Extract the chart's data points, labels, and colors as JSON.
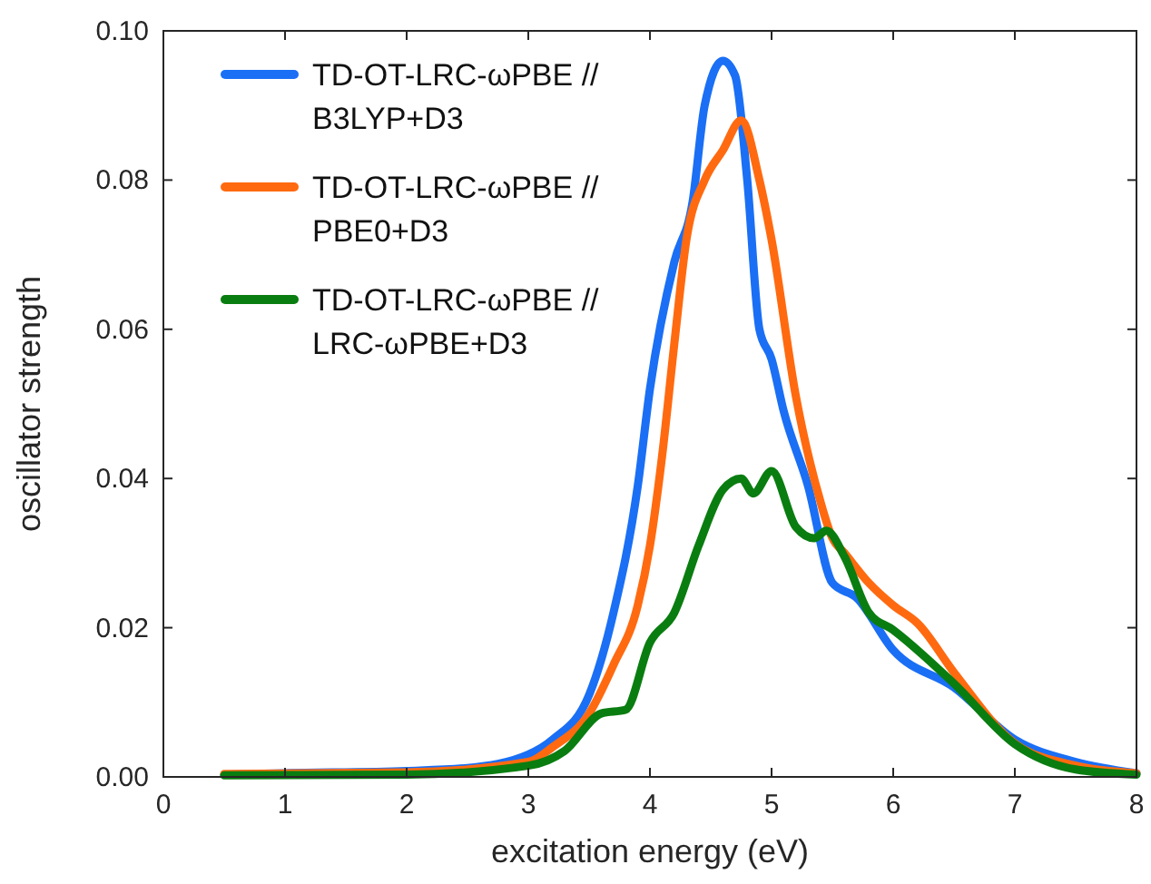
{
  "chart_data": {
    "type": "line",
    "xlabel": "excitation energy (eV)",
    "ylabel": "oscillator strength",
    "xlim": [
      0,
      8
    ],
    "ylim": [
      0,
      0.1
    ],
    "xticks": [
      0,
      1,
      2,
      3,
      4,
      5,
      6,
      7,
      8
    ],
    "yticks": [
      {
        "value": 0,
        "label": "0.00"
      },
      {
        "value": 0.02,
        "label": "0.02"
      },
      {
        "value": 0.04,
        "label": "0.04"
      },
      {
        "value": 0.06,
        "label": "0.06"
      },
      {
        "value": 0.08,
        "label": "0.08"
      },
      {
        "value": 0.1,
        "label": "0.10"
      }
    ],
    "grid": false,
    "legend": "top left",
    "line_style": "solid",
    "marker": "none",
    "series": [
      {
        "name": "TD-OT-LRC-ωPBE // B3LYP+D3",
        "color": "#1a6ff5",
        "x": [
          0.5,
          1,
          2,
          2.5,
          3,
          3.2,
          3.5,
          3.7,
          3.9,
          4.0,
          4.2,
          4.35,
          4.45,
          4.6,
          4.7,
          4.8,
          4.9,
          5.0,
          5.1,
          5.3,
          5.5,
          5.7,
          6.0,
          6.5,
          7.0,
          7.5,
          8
        ],
        "values": [
          0.0003,
          0.0005,
          0.0008,
          0.0012,
          0.003,
          0.005,
          0.011,
          0.022,
          0.039,
          0.052,
          0.069,
          0.077,
          0.09,
          0.096,
          0.094,
          0.08,
          0.06,
          0.056,
          0.049,
          0.039,
          0.026,
          0.024,
          0.017,
          0.012,
          0.005,
          0.002,
          0.0005
        ]
      },
      {
        "name": "TD-OT-LRC-ωPBE // PBE0+D3",
        "color": "#ff6a10",
        "x": [
          0.5,
          2,
          3,
          3.2,
          3.5,
          3.7,
          3.9,
          4.0,
          4.1,
          4.2,
          4.3,
          4.45,
          4.6,
          4.75,
          4.9,
          5.0,
          5.2,
          5.4,
          5.5,
          5.6,
          5.8,
          6.0,
          6.2,
          6.5,
          7.0,
          7.5,
          8
        ],
        "values": [
          0.0004,
          0.0006,
          0.002,
          0.004,
          0.0085,
          0.015,
          0.023,
          0.031,
          0.043,
          0.058,
          0.072,
          0.08,
          0.084,
          0.088,
          0.08,
          0.072,
          0.051,
          0.037,
          0.032,
          0.03,
          0.026,
          0.023,
          0.0206,
          0.014,
          0.0045,
          0.0015,
          0.0005
        ]
      },
      {
        "name": "TD-OT-LRC-ωPBE // LRC-ωPBE+D3",
        "color": "#0a7d10",
        "x": [
          0.5,
          2,
          3,
          3.3,
          3.6,
          3.8,
          4.0,
          4.2,
          4.4,
          4.6,
          4.75,
          4.85,
          5.0,
          5.2,
          5.35,
          5.45,
          5.6,
          5.8,
          6.0,
          6.5,
          7.0,
          7.5,
          8
        ],
        "values": [
          0.0002,
          0.0003,
          0.0015,
          0.0035,
          0.0085,
          0.009,
          0.018,
          0.022,
          0.031,
          0.0385,
          0.04,
          0.038,
          0.041,
          0.0335,
          0.032,
          0.033,
          0.0295,
          0.022,
          0.0197,
          0.0125,
          0.0044,
          0.001,
          0.0003
        ]
      }
    ]
  }
}
